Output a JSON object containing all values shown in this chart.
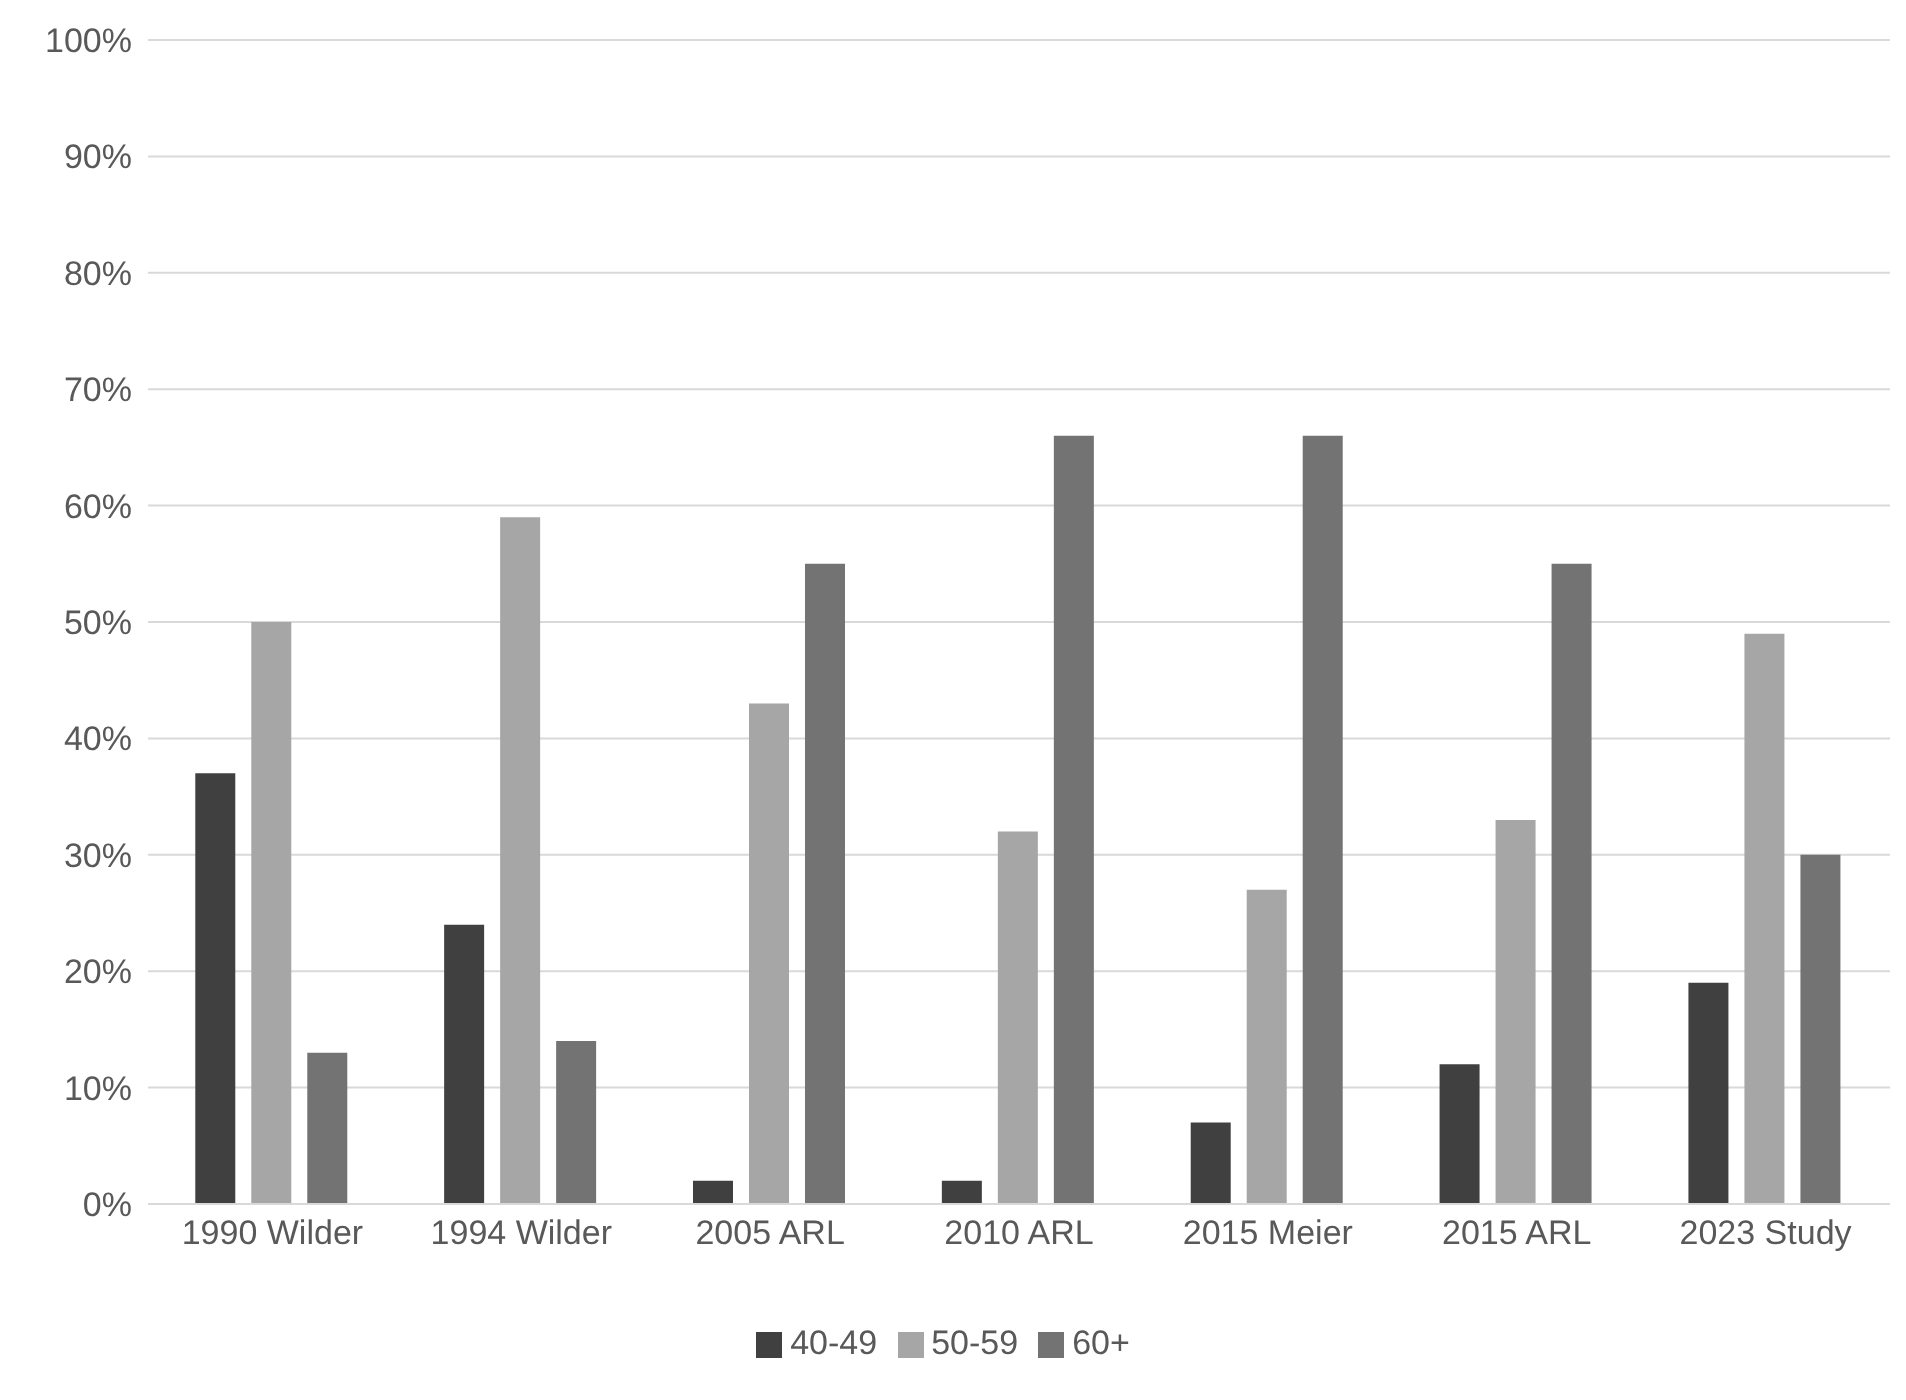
{
  "chart_data": {
    "type": "bar",
    "categories": [
      "1990 Wilder",
      "1994 Wilder",
      "2005 ARL",
      "2010 ARL",
      "2015 Meier",
      "2015 ARL",
      "2023 Study"
    ],
    "series": [
      {
        "name": "40-49",
        "color": "#404040",
        "values": [
          37,
          24,
          2,
          2,
          7,
          12,
          19
        ]
      },
      {
        "name": "50-59",
        "color": "#a6a6a6",
        "values": [
          50,
          59,
          43,
          32,
          27,
          33,
          49
        ]
      },
      {
        "name": "60+",
        "color": "#737373",
        "values": [
          13,
          14,
          55,
          66,
          66,
          55,
          30
        ]
      }
    ],
    "ylim": [
      0,
      100
    ],
    "yticks": [
      {
        "value": 0,
        "label": "0%"
      },
      {
        "value": 10,
        "label": "10%"
      },
      {
        "value": 20,
        "label": "20%"
      },
      {
        "value": 30,
        "label": "30%"
      },
      {
        "value": 40,
        "label": "40%"
      },
      {
        "value": 50,
        "label": "50%"
      },
      {
        "value": 60,
        "label": "60%"
      },
      {
        "value": 70,
        "label": "70%"
      },
      {
        "value": 80,
        "label": "80%"
      },
      {
        "value": 90,
        "label": "90%"
      },
      {
        "value": 100,
        "label": "100%"
      }
    ],
    "grid": "y",
    "legend": "bottom"
  }
}
